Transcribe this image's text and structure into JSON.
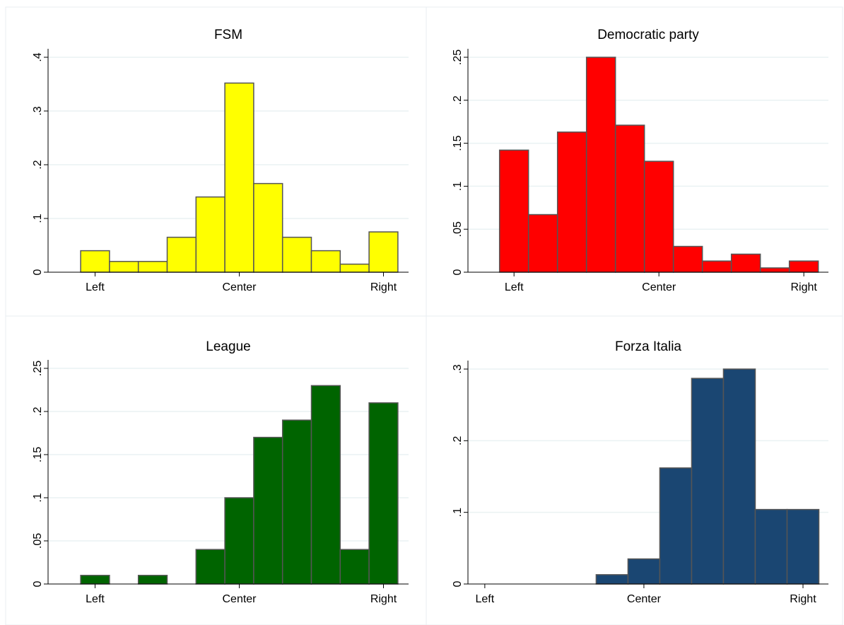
{
  "chart_data": [
    {
      "type": "histogram",
      "title": "FSM",
      "color": "#ffff00",
      "bins": [
        -0.5,
        0.5,
        1.5,
        2.5,
        3.5,
        4.5,
        5.5,
        6.5,
        7.5,
        8.5,
        9.5,
        10.5
      ],
      "values": [
        0.04,
        0.02,
        0.02,
        0.065,
        0.14,
        0.352,
        0.165,
        0.065,
        0.04,
        0.015,
        0.075
      ],
      "xlim": [
        -1.63,
        10.87
      ],
      "xticks": [
        {
          "value": 0,
          "label": "Left"
        },
        {
          "value": 5,
          "label": "Center"
        },
        {
          "value": 10,
          "label": "Right"
        }
      ],
      "ylim": [
        0,
        0.4
      ],
      "yticks": [
        0,
        {
          "value": 0.1,
          "label": ".1"
        },
        {
          "value": 0.2,
          "label": ".2"
        },
        {
          "value": 0.3,
          "label": ".3"
        },
        {
          "value": 0.4,
          "label": ".4"
        }
      ],
      "grid": true
    },
    {
      "type": "histogram",
      "title": "Democratic party",
      "color": "#ff0000",
      "bins": [
        -0.5,
        0.5,
        1.5,
        2.5,
        3.5,
        4.5,
        5.5,
        6.5,
        7.5,
        8.5,
        9.5,
        10.5
      ],
      "values": [
        0.142,
        0.067,
        0.163,
        0.25,
        0.171,
        0.129,
        0.03,
        0.013,
        0.021,
        0.005,
        0.013
      ],
      "xlim": [
        -1.59,
        10.85
      ],
      "xticks": [
        {
          "value": 0,
          "label": "Left"
        },
        {
          "value": 5,
          "label": "Center"
        },
        {
          "value": 10,
          "label": "Right"
        }
      ],
      "ylim": [
        0,
        0.25
      ],
      "yticks": [
        0,
        {
          "value": 0.05,
          "label": ".05"
        },
        {
          "value": 0.1,
          "label": ".1"
        },
        {
          "value": 0.15,
          "label": ".15"
        },
        {
          "value": 0.2,
          "label": ".2"
        },
        {
          "value": 0.25,
          "label": ".25"
        }
      ],
      "grid": true
    },
    {
      "type": "histogram",
      "title": "League",
      "color": "#006400",
      "bins": [
        -0.5,
        0.5,
        1.5,
        2.5,
        3.5,
        4.5,
        5.5,
        6.5,
        7.5,
        8.5,
        9.5,
        10.5
      ],
      "values": [
        0.01,
        0,
        0.01,
        0,
        0.04,
        0.1,
        0.17,
        0.19,
        0.23,
        0.04,
        0.21
      ],
      "xlim": [
        -1.63,
        10.87
      ],
      "xticks": [
        {
          "value": 0,
          "label": "Left"
        },
        {
          "value": 5,
          "label": "Center"
        },
        {
          "value": 10,
          "label": "Right"
        }
      ],
      "ylim": [
        0,
        0.25
      ],
      "yticks": [
        0,
        {
          "value": 0.05,
          "label": ".05"
        },
        {
          "value": 0.1,
          "label": ".1"
        },
        {
          "value": 0.15,
          "label": ".15"
        },
        {
          "value": 0.2,
          "label": ".2"
        },
        {
          "value": 0.25,
          "label": ".25"
        }
      ],
      "grid": true
    },
    {
      "type": "histogram",
      "title": "Forza Italia",
      "color": "#1a4672",
      "bins": [
        3.5,
        4.5,
        5.5,
        6.5,
        7.5,
        8.5,
        9.5,
        10.5
      ],
      "values": [
        0.013,
        0.035,
        0.162,
        0.287,
        0.3,
        0.104,
        0.104
      ],
      "xlim": [
        -0.53,
        10.8
      ],
      "xticks": [
        {
          "value": 0,
          "label": "Left"
        },
        {
          "value": 5,
          "label": "Center"
        },
        {
          "value": 10,
          "label": "Right"
        }
      ],
      "ylim": [
        0,
        0.3
      ],
      "yticks": [
        0,
        {
          "value": 0.1,
          "label": ".1"
        },
        {
          "value": 0.2,
          "label": ".2"
        },
        {
          "value": 0.3,
          "label": ".3"
        }
      ],
      "grid": true
    }
  ]
}
